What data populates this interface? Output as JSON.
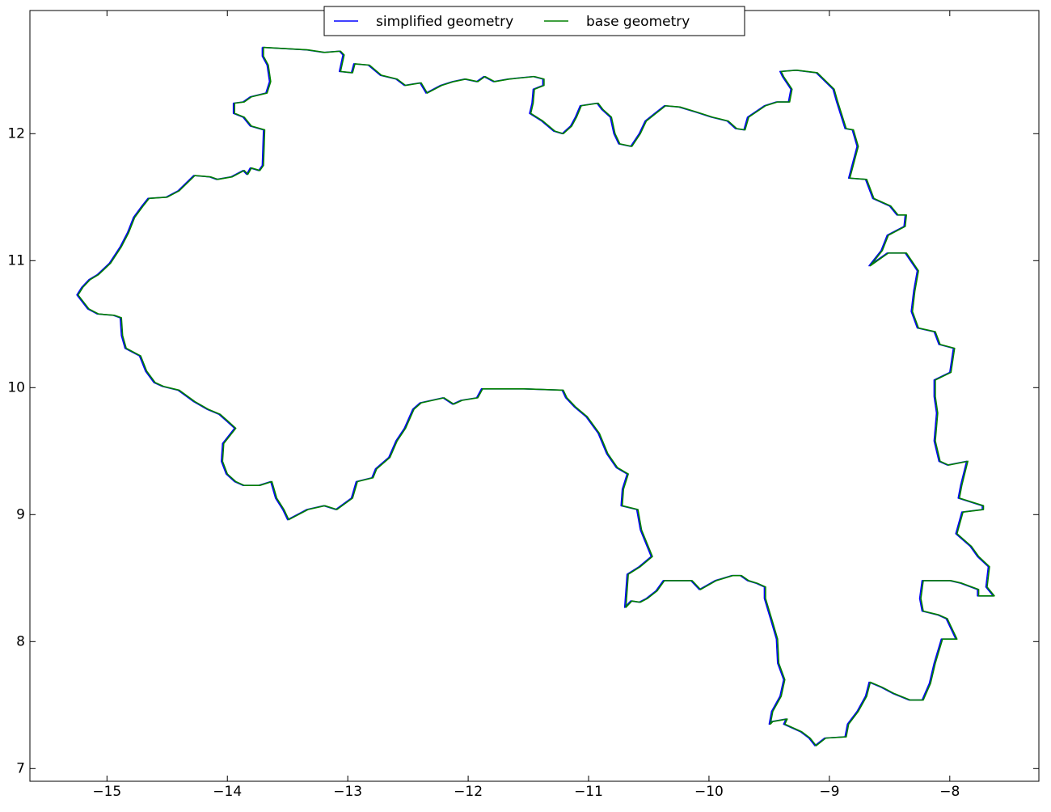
{
  "chart_data": {
    "type": "line",
    "xlim": [
      -15.64,
      -7.26
    ],
    "ylim": [
      6.9,
      12.97
    ],
    "xticks": [
      {
        "value": -15,
        "label": "−15"
      },
      {
        "value": -14,
        "label": "−14"
      },
      {
        "value": -13,
        "label": "−13"
      },
      {
        "value": -12,
        "label": "−12"
      },
      {
        "value": -11,
        "label": "−11"
      },
      {
        "value": -10,
        "label": "−10"
      },
      {
        "value": -9,
        "label": "−9"
      },
      {
        "value": -8,
        "label": "−8"
      }
    ],
    "yticks": [
      7,
      8,
      9,
      10,
      11,
      12
    ],
    "legend": "upper center",
    "series": [
      {
        "name": "simplified geometry",
        "color": "#0000ff",
        "x": [
          -13.71,
          -13.34,
          -13.2,
          -13.07,
          -13.04,
          -13.07,
          -12.97,
          -12.95,
          -12.83,
          -12.73,
          -12.6,
          -12.53,
          -12.4,
          -12.35,
          -12.23,
          -12.13,
          -12.03,
          -11.93,
          -11.87,
          -11.79,
          -11.67,
          -11.46,
          -11.38,
          -11.38,
          -11.46,
          -11.47,
          -11.49,
          -11.39,
          -11.29,
          -11.22,
          -11.15,
          -11.11,
          -11.07,
          -10.93,
          -10.89,
          -10.82,
          -10.79,
          -10.75,
          -10.65,
          -10.58,
          -10.53,
          -10.45,
          -10.37,
          -10.25,
          -10.11,
          -9.98,
          -9.85,
          -9.78,
          -9.71,
          -9.68,
          -9.54,
          -9.44,
          -9.34,
          -9.32,
          -9.39,
          -9.41,
          -9.28,
          -9.11,
          -8.97,
          -8.94,
          -8.91,
          -8.87,
          -8.81,
          -8.77,
          -8.84,
          -8.7,
          -8.64,
          -8.5,
          -8.44,
          -8.37,
          -8.38,
          -8.52,
          -8.57,
          -8.67,
          -8.52,
          -8.37,
          -8.27,
          -8.3,
          -8.32,
          -8.27,
          -8.13,
          -8.09,
          -7.97,
          -8.0,
          -8.13,
          -8.13,
          -8.11,
          -8.13,
          -8.09,
          -8.02,
          -7.86,
          -7.91,
          -7.93,
          -7.73,
          -7.73,
          -7.9,
          -7.95,
          -7.83,
          -7.77,
          -7.68,
          -7.7,
          -7.64,
          -7.77,
          -7.77,
          -7.91,
          -8.0,
          -8.23,
          -8.25,
          -8.23,
          -8.1,
          -8.03,
          -7.95,
          -8.07,
          -8.13,
          -8.17,
          -8.23,
          -8.34,
          -8.47,
          -8.57,
          -8.67,
          -8.7,
          -8.77,
          -8.85,
          -8.87,
          -9.04,
          -9.12,
          -9.17,
          -9.24,
          -9.38,
          -9.36,
          -9.48,
          -9.5,
          -9.48,
          -9.41,
          -9.38,
          -9.43,
          -9.44,
          -9.48,
          -9.54,
          -9.54,
          -9.61,
          -9.68,
          -9.74,
          -9.81,
          -9.95,
          -10.08,
          -10.15,
          -10.25,
          -10.38,
          -10.44,
          -10.52,
          -10.58,
          -10.65,
          -10.7,
          -10.68,
          -10.58,
          -10.48,
          -10.57,
          -10.6,
          -10.73,
          -10.72,
          -10.68,
          -10.77,
          -10.85,
          -10.92,
          -11.02,
          -11.12,
          -11.19,
          -11.22,
          -11.54,
          -11.89,
          -11.93,
          -12.06,
          -12.13,
          -12.21,
          -12.4,
          -12.46,
          -12.53,
          -12.6,
          -12.66,
          -12.77,
          -12.8,
          -12.93,
          -12.97,
          -13.1,
          -13.2,
          -13.34,
          -13.5,
          -13.54,
          -13.6,
          -13.64,
          -13.74,
          -13.87,
          -13.94,
          -14.01,
          -14.05,
          -14.04,
          -13.94,
          -14.01,
          -14.07,
          -14.17,
          -14.28,
          -14.41,
          -14.54,
          -14.61,
          -14.68,
          -14.73,
          -14.85,
          -14.88,
          -14.89,
          -14.95,
          -15.08,
          -15.16,
          -15.25,
          -15.21,
          -15.15,
          -15.08,
          -14.98,
          -14.89,
          -14.83,
          -14.78,
          -14.71,
          -14.66,
          -14.51,
          -14.41,
          -14.28,
          -14.15,
          -14.09,
          -13.97,
          -13.87,
          -13.84,
          -13.81,
          -13.74,
          -13.71,
          -13.7,
          -13.81,
          -13.87,
          -13.95,
          -13.95,
          -13.87,
          -13.81,
          -13.68,
          -13.65,
          -13.67,
          -13.71,
          -13.71
        ],
        "y": [
          12.68,
          12.66,
          12.64,
          12.65,
          12.62,
          12.49,
          12.48,
          12.55,
          12.54,
          12.46,
          12.43,
          12.38,
          12.4,
          12.32,
          12.38,
          12.41,
          12.43,
          12.41,
          12.45,
          12.41,
          12.43,
          12.45,
          12.43,
          12.38,
          12.35,
          12.24,
          12.16,
          12.1,
          12.02,
          12.0,
          12.06,
          12.13,
          12.22,
          12.24,
          12.19,
          12.13,
          12.0,
          11.92,
          11.9,
          12.0,
          12.1,
          12.16,
          12.22,
          12.21,
          12.17,
          12.13,
          12.1,
          12.04,
          12.03,
          12.13,
          12.22,
          12.25,
          12.25,
          12.35,
          12.45,
          12.49,
          12.5,
          12.48,
          12.35,
          12.25,
          12.16,
          12.04,
          12.03,
          11.9,
          11.65,
          11.64,
          11.49,
          11.43,
          11.36,
          11.36,
          11.27,
          11.2,
          11.08,
          10.96,
          11.06,
          11.06,
          10.92,
          10.76,
          10.6,
          10.47,
          10.44,
          10.34,
          10.31,
          10.12,
          10.06,
          9.93,
          9.8,
          9.58,
          9.42,
          9.39,
          9.42,
          9.23,
          9.13,
          9.07,
          9.04,
          9.02,
          8.85,
          8.75,
          8.67,
          8.59,
          8.43,
          8.36,
          8.36,
          8.41,
          8.46,
          8.48,
          8.48,
          8.34,
          8.24,
          8.21,
          8.18,
          8.02,
          8.02,
          7.83,
          7.67,
          7.54,
          7.54,
          7.59,
          7.64,
          7.68,
          7.57,
          7.45,
          7.35,
          7.25,
          7.24,
          7.18,
          7.24,
          7.29,
          7.35,
          7.39,
          7.37,
          7.35,
          7.45,
          7.57,
          7.7,
          7.83,
          8.02,
          8.15,
          8.34,
          8.43,
          8.46,
          8.48,
          8.52,
          8.52,
          8.48,
          8.41,
          8.48,
          8.48,
          8.48,
          8.4,
          8.34,
          8.31,
          8.32,
          8.27,
          8.53,
          8.59,
          8.67,
          8.88,
          9.04,
          9.07,
          9.2,
          9.32,
          9.37,
          9.48,
          9.64,
          9.77,
          9.85,
          9.92,
          9.98,
          9.99,
          9.99,
          9.92,
          9.9,
          9.87,
          9.92,
          9.88,
          9.83,
          9.68,
          9.58,
          9.45,
          9.36,
          9.29,
          9.26,
          9.13,
          9.04,
          9.07,
          9.04,
          8.96,
          9.04,
          9.13,
          9.26,
          9.23,
          9.23,
          9.26,
          9.32,
          9.42,
          9.56,
          9.68,
          9.74,
          9.79,
          9.83,
          9.89,
          9.98,
          10.01,
          10.04,
          10.13,
          10.25,
          10.31,
          10.41,
          10.55,
          10.57,
          10.58,
          10.62,
          10.73,
          10.79,
          10.85,
          10.89,
          10.98,
          11.11,
          11.22,
          11.34,
          11.43,
          11.49,
          11.5,
          11.55,
          11.67,
          11.66,
          11.64,
          11.66,
          11.71,
          11.68,
          11.73,
          11.71,
          11.75,
          12.03,
          12.06,
          12.13,
          12.16,
          12.24,
          12.25,
          12.29,
          12.32,
          12.41,
          12.54,
          12.61,
          12.68
        ]
      },
      {
        "name": "base geometry",
        "color": "#008000",
        "x": [
          -13.7,
          -13.33,
          -13.19,
          -13.06,
          -13.03,
          -13.06,
          -12.96,
          -12.94,
          -12.82,
          -12.72,
          -12.59,
          -12.52,
          -12.39,
          -12.34,
          -12.22,
          -12.12,
          -12.02,
          -11.92,
          -11.86,
          -11.78,
          -11.66,
          -11.45,
          -11.37,
          -11.37,
          -11.45,
          -11.46,
          -11.48,
          -11.38,
          -11.28,
          -11.21,
          -11.14,
          -11.1,
          -11.06,
          -10.92,
          -10.88,
          -10.81,
          -10.78,
          -10.74,
          -10.64,
          -10.57,
          -10.52,
          -10.44,
          -10.36,
          -10.24,
          -10.1,
          -9.97,
          -9.84,
          -9.77,
          -9.7,
          -9.67,
          -9.53,
          -9.43,
          -9.33,
          -9.31,
          -9.38,
          -9.4,
          -9.27,
          -9.1,
          -8.96,
          -8.93,
          -8.9,
          -8.86,
          -8.8,
          -8.76,
          -8.83,
          -8.69,
          -8.63,
          -8.49,
          -8.43,
          -8.36,
          -8.37,
          -8.51,
          -8.56,
          -8.66,
          -8.51,
          -8.36,
          -8.26,
          -8.29,
          -8.31,
          -8.26,
          -8.12,
          -8.08,
          -7.96,
          -7.99,
          -8.12,
          -8.12,
          -8.1,
          -8.12,
          -8.08,
          -8.01,
          -7.85,
          -7.9,
          -7.92,
          -7.72,
          -7.72,
          -7.89,
          -7.94,
          -7.82,
          -7.76,
          -7.67,
          -7.69,
          -7.63,
          -7.76,
          -7.76,
          -7.9,
          -7.99,
          -8.22,
          -8.24,
          -8.22,
          -8.09,
          -8.02,
          -7.94,
          -8.06,
          -8.12,
          -8.16,
          -8.22,
          -8.33,
          -8.46,
          -8.56,
          -8.66,
          -8.69,
          -8.76,
          -8.84,
          -8.86,
          -9.03,
          -9.11,
          -9.16,
          -9.23,
          -9.37,
          -9.35,
          -9.47,
          -9.49,
          -9.47,
          -9.4,
          -9.37,
          -9.42,
          -9.43,
          -9.47,
          -9.53,
          -9.53,
          -9.6,
          -9.67,
          -9.73,
          -9.8,
          -9.94,
          -10.07,
          -10.14,
          -10.24,
          -10.37,
          -10.43,
          -10.51,
          -10.57,
          -10.64,
          -10.69,
          -10.67,
          -10.57,
          -10.47,
          -10.56,
          -10.59,
          -10.72,
          -10.71,
          -10.67,
          -10.76,
          -10.84,
          -10.91,
          -11.01,
          -11.11,
          -11.18,
          -11.21,
          -11.53,
          -11.88,
          -11.92,
          -12.05,
          -12.12,
          -12.2,
          -12.39,
          -12.45,
          -12.52,
          -12.59,
          -12.65,
          -12.76,
          -12.79,
          -12.92,
          -12.96,
          -13.09,
          -13.19,
          -13.33,
          -13.49,
          -13.53,
          -13.59,
          -13.63,
          -13.73,
          -13.86,
          -13.93,
          -14.0,
          -14.04,
          -14.03,
          -13.93,
          -14.0,
          -14.06,
          -14.16,
          -14.27,
          -14.4,
          -14.53,
          -14.6,
          -14.67,
          -14.72,
          -14.84,
          -14.87,
          -14.88,
          -14.94,
          -15.07,
          -15.15,
          -15.24,
          -15.2,
          -15.14,
          -15.07,
          -14.97,
          -14.88,
          -14.82,
          -14.77,
          -14.7,
          -14.65,
          -14.5,
          -14.4,
          -14.27,
          -14.14,
          -14.08,
          -13.96,
          -13.86,
          -13.83,
          -13.8,
          -13.73,
          -13.7,
          -13.69,
          -13.8,
          -13.86,
          -13.94,
          -13.94,
          -13.86,
          -13.8,
          -13.67,
          -13.64,
          -13.66,
          -13.7,
          -13.7
        ],
        "y": [
          12.68,
          12.66,
          12.64,
          12.65,
          12.62,
          12.49,
          12.48,
          12.55,
          12.54,
          12.46,
          12.43,
          12.38,
          12.4,
          12.32,
          12.38,
          12.41,
          12.43,
          12.41,
          12.45,
          12.41,
          12.43,
          12.45,
          12.43,
          12.38,
          12.35,
          12.24,
          12.16,
          12.1,
          12.02,
          12.0,
          12.06,
          12.13,
          12.22,
          12.24,
          12.19,
          12.13,
          12.0,
          11.92,
          11.9,
          12.0,
          12.1,
          12.16,
          12.22,
          12.21,
          12.17,
          12.13,
          12.1,
          12.04,
          12.03,
          12.13,
          12.22,
          12.25,
          12.25,
          12.35,
          12.45,
          12.49,
          12.5,
          12.48,
          12.35,
          12.25,
          12.16,
          12.04,
          12.03,
          11.9,
          11.65,
          11.64,
          11.49,
          11.43,
          11.36,
          11.36,
          11.27,
          11.2,
          11.08,
          10.96,
          11.06,
          11.06,
          10.92,
          10.76,
          10.6,
          10.47,
          10.44,
          10.34,
          10.31,
          10.12,
          10.06,
          9.93,
          9.8,
          9.58,
          9.42,
          9.39,
          9.42,
          9.23,
          9.13,
          9.07,
          9.04,
          9.02,
          8.85,
          8.75,
          8.67,
          8.59,
          8.43,
          8.36,
          8.36,
          8.41,
          8.46,
          8.48,
          8.48,
          8.34,
          8.24,
          8.21,
          8.18,
          8.02,
          8.02,
          7.83,
          7.67,
          7.54,
          7.54,
          7.59,
          7.64,
          7.68,
          7.57,
          7.45,
          7.35,
          7.25,
          7.24,
          7.18,
          7.24,
          7.29,
          7.35,
          7.39,
          7.37,
          7.35,
          7.45,
          7.57,
          7.7,
          7.83,
          8.02,
          8.15,
          8.34,
          8.43,
          8.46,
          8.48,
          8.52,
          8.52,
          8.48,
          8.41,
          8.48,
          8.48,
          8.48,
          8.4,
          8.34,
          8.31,
          8.32,
          8.27,
          8.53,
          8.59,
          8.67,
          8.88,
          9.04,
          9.07,
          9.2,
          9.32,
          9.37,
          9.48,
          9.64,
          9.77,
          9.85,
          9.92,
          9.98,
          9.99,
          9.99,
          9.92,
          9.9,
          9.87,
          9.92,
          9.88,
          9.83,
          9.68,
          9.58,
          9.45,
          9.36,
          9.29,
          9.26,
          9.13,
          9.04,
          9.07,
          9.04,
          8.96,
          9.04,
          9.13,
          9.26,
          9.23,
          9.23,
          9.26,
          9.32,
          9.42,
          9.56,
          9.68,
          9.74,
          9.79,
          9.83,
          9.89,
          9.98,
          10.01,
          10.04,
          10.13,
          10.25,
          10.31,
          10.41,
          10.55,
          10.57,
          10.58,
          10.62,
          10.73,
          10.79,
          10.85,
          10.89,
          10.98,
          11.11,
          11.22,
          11.34,
          11.43,
          11.49,
          11.5,
          11.55,
          11.67,
          11.66,
          11.64,
          11.66,
          11.71,
          11.68,
          11.73,
          11.71,
          11.75,
          12.03,
          12.06,
          12.13,
          12.16,
          12.24,
          12.25,
          12.29,
          12.32,
          12.41,
          12.54,
          12.61,
          12.68
        ]
      }
    ]
  }
}
